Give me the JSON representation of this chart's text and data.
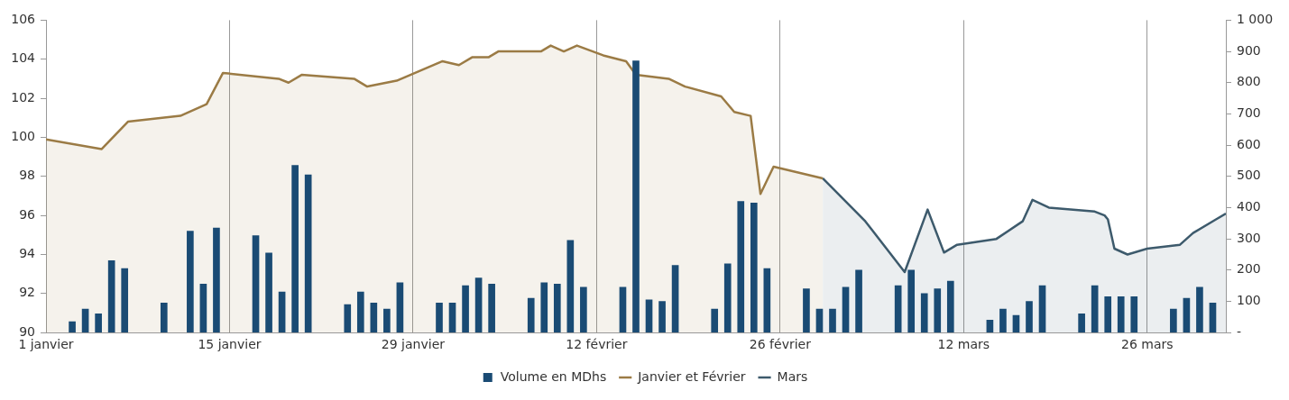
{
  "chart_data": {
    "type": "bar",
    "legend": "bottom",
    "grid": "x",
    "marker": "none",
    "xlim": [
      "--01-01",
      "--04-01"
    ],
    "xticks": [
      {
        "value": "--01-01",
        "label": "1 janvier"
      },
      {
        "value": "--01-15",
        "label": "15 janvier"
      },
      {
        "value": "--01-29",
        "label": "29 janvier"
      },
      {
        "value": "--02-12",
        "label": "12 février"
      },
      {
        "value": "--02-26",
        "label": "26 février"
      },
      {
        "value": "--03-12",
        "label": "12 mars"
      },
      {
        "value": "--03-26",
        "label": "26 mars"
      }
    ],
    "ylim": [
      90,
      106
    ],
    "yticks": [
      90,
      92,
      94,
      96,
      98,
      100,
      102,
      104,
      106
    ],
    "y2lim": [
      0,
      1000
    ],
    "y2ticks": [
      {
        "value": 0,
        "label": "-"
      },
      100,
      200,
      300,
      400,
      500,
      600,
      700,
      800,
      900,
      {
        "value": 1000,
        "label": "1 000"
      }
    ],
    "series": [
      {
        "name": "Volume en MDhs",
        "axis": "y2",
        "color": "#1a4b74",
        "x": [
          "--01-03",
          "--01-04",
          "--01-05",
          "--01-06",
          "--01-07",
          "--01-10",
          "--01-12",
          "--01-13",
          "--01-14",
          "--01-17",
          "--01-18",
          "--01-19",
          "--01-20",
          "--01-21",
          "--01-24",
          "--01-25",
          "--01-26",
          "--01-27",
          "--01-28",
          "--01-31",
          "--02-01",
          "--02-02",
          "--02-03",
          "--02-04",
          "--02-07",
          "--02-08",
          "--02-09",
          "--02-10",
          "--02-11",
          "--02-14",
          "--02-15",
          "--02-16",
          "--02-17",
          "--02-18",
          "--02-21",
          "--02-22",
          "--02-23",
          "--02-24",
          "--02-25",
          "--02-28",
          "--03-01",
          "--03-02",
          "--03-03",
          "--03-04",
          "--03-07",
          "--03-08",
          "--03-09",
          "--03-10",
          "--03-11",
          "--03-14",
          "--03-15",
          "--03-16",
          "--03-17",
          "--03-18",
          "--03-21",
          "--03-22",
          "--03-23",
          "--03-24",
          "--03-25",
          "--03-28",
          "--03-29",
          "--03-30",
          "--03-31"
        ],
        "values": [
          35,
          75,
          60,
          230,
          205,
          95,
          325,
          155,
          335,
          310,
          255,
          130,
          535,
          505,
          90,
          130,
          95,
          75,
          160,
          95,
          95,
          150,
          175,
          155,
          110,
          160,
          155,
          295,
          145,
          145,
          870,
          105,
          100,
          215,
          75,
          220,
          420,
          415,
          205,
          140,
          75,
          75,
          145,
          200,
          150,
          200,
          125,
          140,
          165,
          40,
          75,
          55,
          100,
          150,
          60,
          150,
          115,
          115,
          115,
          75,
          110,
          145,
          95
        ]
      },
      {
        "name": "Janvier et Février",
        "type": "area",
        "axis": "y",
        "color": "#9b7b45",
        "x": [
          "--01-01T00:00",
          "--01-05T06:00",
          "--01-07T06:00",
          "--01-11T06:00",
          "--01-13T06:00",
          "--01-14T12:00",
          "--01-18T18:00",
          "--01-19T12:00",
          "--01-20T12:00",
          "--01-24T12:00",
          "--01-25T12:00",
          "--01-27T18:00",
          "--01-31T06:00",
          "--02-01T12:00",
          "--02-02T12:00",
          "--02-03T18:00",
          "--02-04T12:00",
          "--02-07T18:00",
          "--02-08T12:00",
          "--02-09T12:00",
          "--02-10T12:00",
          "--02-12T12:00",
          "--02-14T06:00",
          "--02-15T00:00",
          "--02-17T12:00",
          "--02-18T18:00",
          "--02-21T12:00",
          "--02-22T12:00",
          "--02-23T18:00",
          "--02-24T12:00",
          "--02-25T12:00",
          "--03-01T06:00"
        ],
        "values": [
          99.9,
          99.4,
          100.8,
          101.1,
          101.7,
          103.3,
          103.0,
          102.8,
          103.2,
          103.0,
          102.6,
          102.9,
          103.9,
          103.7,
          104.1,
          104.1,
          104.4,
          104.4,
          104.7,
          104.4,
          104.7,
          104.2,
          103.9,
          103.2,
          103.0,
          102.6,
          102.1,
          101.3,
          101.1,
          97.1,
          98.5,
          97.9
        ]
      },
      {
        "name": "Mars",
        "type": "area",
        "axis": "y",
        "color": "#3d5a6c",
        "x": [
          "--03-01T06:00",
          "--03-04T12:00",
          "--03-07T12:00",
          "--03-09T06:00",
          "--03-10T12:00",
          "--03-11T12:00",
          "--03-14T12:00",
          "--03-16T12:00",
          "--03-17T06:00",
          "--03-18T12:00",
          "--03-22T00:00",
          "--03-22T18:00",
          "--03-23T00:00",
          "--03-23T12:00",
          "--03-24T12:00",
          "--03-26T00:00",
          "--03-28T12:00",
          "--03-29T12:00",
          "--03-31T06:00",
          "--04-01T00:00"
        ],
        "values": [
          97.9,
          95.7,
          93.1,
          96.3,
          94.1,
          94.5,
          94.8,
          95.7,
          96.8,
          96.4,
          96.2,
          96.0,
          95.8,
          94.3,
          94.0,
          94.3,
          94.5,
          95.1,
          95.8,
          96.1
        ]
      }
    ]
  }
}
